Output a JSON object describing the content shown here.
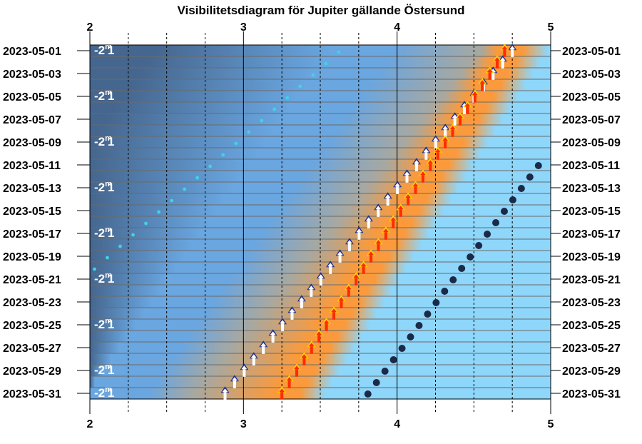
{
  "chart_data": {
    "type": "scatter",
    "title": "Visibilitetsdiagram för Jupiter gällande Östersund",
    "x_ticks": [
      "2",
      "3",
      "4",
      "5"
    ],
    "xlim": [
      2,
      5
    ],
    "dates": [
      "2023-05-01",
      "2023-05-02",
      "2023-05-03",
      "2023-05-04",
      "2023-05-05",
      "2023-05-06",
      "2023-05-07",
      "2023-05-08",
      "2023-05-09",
      "2023-05-10",
      "2023-05-11",
      "2023-05-12",
      "2023-05-13",
      "2023-05-14",
      "2023-05-15",
      "2023-05-16",
      "2023-05-17",
      "2023-05-18",
      "2023-05-19",
      "2023-05-20",
      "2023-05-21",
      "2023-05-22",
      "2023-05-23",
      "2023-05-24",
      "2023-05-25",
      "2023-05-26",
      "2023-05-27",
      "2023-05-28",
      "2023-05-29",
      "2023-05-30",
      "2023-05-31"
    ],
    "date_labels": [
      "2023-05-01",
      "2023-05-03",
      "2023-05-05",
      "2023-05-07",
      "2023-05-09",
      "2023-05-11",
      "2023-05-13",
      "2023-05-15",
      "2023-05-17",
      "2023-05-19",
      "2023-05-21",
      "2023-05-23",
      "2023-05-25",
      "2023-05-27",
      "2023-05-29",
      "2023-05-31"
    ],
    "magnitude_labels": [
      "-2m1",
      "-2m1",
      "-2m1",
      "-2m1",
      "-2m1",
      "-2m1",
      "-2m1",
      "-2m1",
      "-2m1"
    ],
    "magnitude_dates": [
      "2023-05-01",
      "2023-05-05",
      "2023-05-09",
      "2023-05-13",
      "2023-05-17",
      "2023-05-21",
      "2023-05-25",
      "2023-05-29",
      "2023-05-31"
    ],
    "sun_dots": {
      "x_start": 3.62,
      "x_end": 2.03,
      "date_start": "2023-05-01",
      "date_end": "2023-05-20"
    },
    "white_arrows": {
      "x_start": 4.75,
      "x_end": 2.88
    },
    "red_arrows": {
      "x_start": 4.7,
      "x_end": 3.25
    },
    "moon_dots": {
      "x_start": 4.92,
      "x_end": 3.81,
      "date_start": "2023-05-11",
      "date_end": "2023-05-31"
    },
    "colors": {
      "night": "#45668e",
      "twilight": "#6aa6e0",
      "dusk": "#a8a8a0",
      "dawn": "#fa9a3c",
      "day": "#8ed6fa",
      "sun_dot": "#3fd3e6",
      "moon_dot": "#1b2a48",
      "arrow_white": "#ffffff",
      "arrow_white_tip": "#1c2e8e",
      "arrow_red": "#ff2a00",
      "arrow_red_tip": "#ffd400"
    }
  }
}
